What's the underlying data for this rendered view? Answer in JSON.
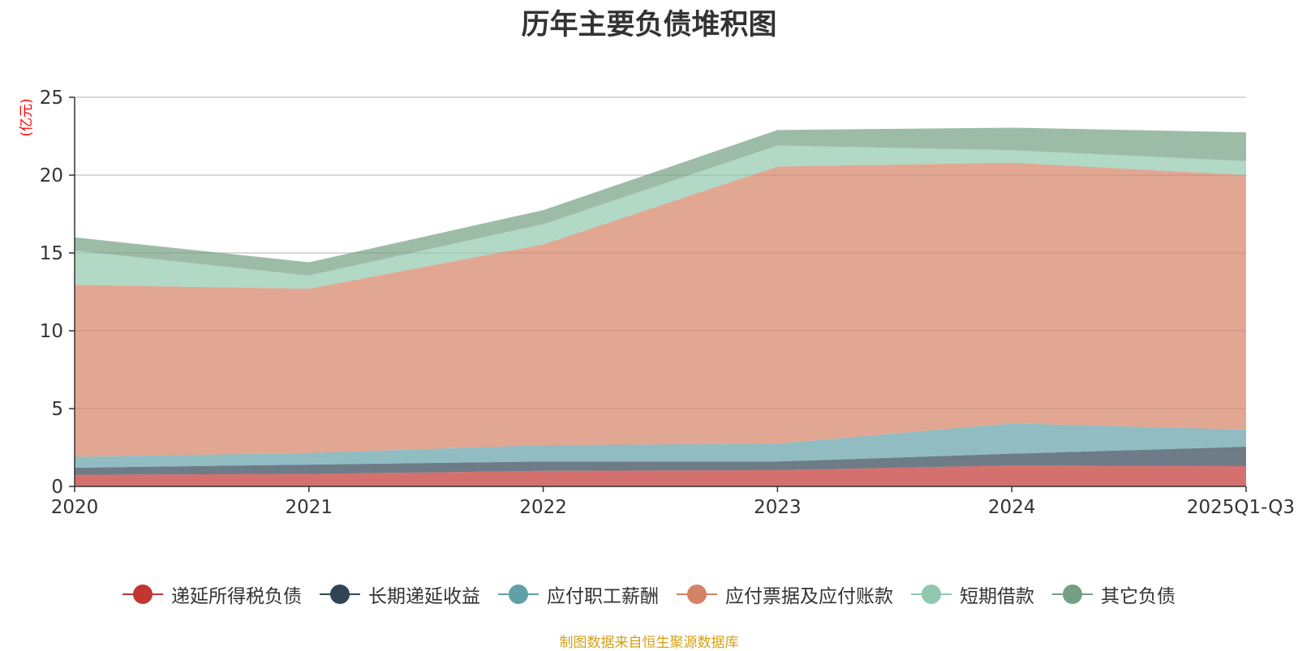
{
  "chart_data": {
    "type": "area",
    "stacked": true,
    "title": "历年主要负债堆积图",
    "ylabel": "(亿元)",
    "xlabel": "",
    "categories": [
      "2020",
      "2021",
      "2022",
      "2023",
      "2024",
      "2025Q1-Q3"
    ],
    "ylim": [
      0,
      25
    ],
    "yticks": [
      0,
      5,
      10,
      15,
      20,
      25
    ],
    "grid": true,
    "legend_position": "bottom",
    "series": [
      {
        "name": "递延所得税负债",
        "color": "#c23531",
        "values": [
          0.75,
          0.8,
          1.0,
          1.05,
          1.35,
          1.3
        ]
      },
      {
        "name": "长期递延收益",
        "color": "#2f4554",
        "values": [
          0.45,
          0.6,
          0.6,
          0.55,
          0.75,
          1.25
        ]
      },
      {
        "name": "应付职工薪酬",
        "color": "#61a0a8",
        "values": [
          0.7,
          0.75,
          1.05,
          1.15,
          1.95,
          1.1
        ]
      },
      {
        "name": "应付票据及应付账款",
        "color": "#d48265",
        "values": [
          11.05,
          10.55,
          12.9,
          17.8,
          16.75,
          16.35
        ]
      },
      {
        "name": "短期借款",
        "color": "#91c7ae",
        "values": [
          2.2,
          0.85,
          1.3,
          1.35,
          0.8,
          0.9
        ]
      },
      {
        "name": "其它负债",
        "color": "#749f83",
        "values": [
          0.85,
          0.85,
          0.9,
          1.0,
          1.45,
          1.85
        ]
      }
    ]
  },
  "footer": {
    "source": "制图数据来自恒生聚源数据库"
  }
}
